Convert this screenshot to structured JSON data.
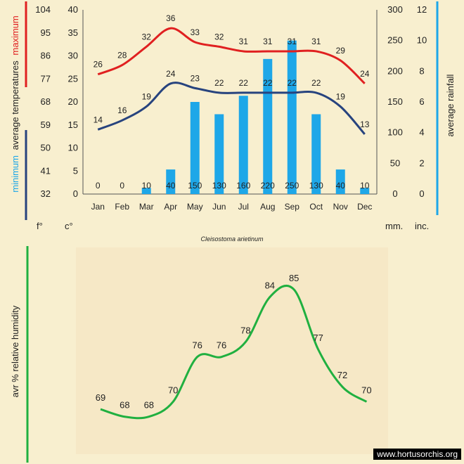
{
  "chart_data": [
    {
      "type": "bar+line",
      "subtitle": "Cleisostoma arietinum",
      "categories": [
        "Jan",
        "Feb",
        "Mar",
        "Apr",
        "May",
        "Jun",
        "Jul",
        "Aug",
        "Sep",
        "Oct",
        "Nov",
        "Dec"
      ],
      "series": [
        {
          "name": "maximum",
          "kind": "line",
          "axis": "celsius",
          "values": [
            26,
            28,
            32,
            36,
            33,
            32,
            31,
            31,
            31,
            31,
            29,
            24
          ],
          "color": "#e02020"
        },
        {
          "name": "minimum",
          "kind": "line",
          "axis": "celsius",
          "values": [
            14,
            16,
            19,
            24,
            23,
            22,
            22,
            22,
            22,
            22,
            19,
            13
          ],
          "color": "#27437e"
        },
        {
          "name": "average rainfall",
          "kind": "bar",
          "axis": "mm",
          "values": [
            0,
            0,
            10,
            40,
            150,
            130,
            160,
            220,
            250,
            130,
            40,
            10
          ],
          "color": "#1ea7e8"
        }
      ],
      "left_axis_label_parts": {
        "minimum": "minimum",
        "average": "average temperatures",
        "maximum": "maximum"
      },
      "right_axis_label": "average rainfall",
      "fahrenheit_ticks": [
        "32",
        "41",
        "50",
        "59",
        "68",
        "77",
        "86",
        "95",
        "104"
      ],
      "celsius_ticks": [
        "0",
        "5",
        "10",
        "15",
        "20",
        "25",
        "30",
        "35",
        "40"
      ],
      "mm_ticks": [
        "0",
        "50",
        "100",
        "150",
        "200",
        "250",
        "300"
      ],
      "inch_ticks": [
        "0",
        "2",
        "4",
        "6",
        "8",
        "10",
        "12"
      ],
      "unit_labels": {
        "f": "f°",
        "c": "c°",
        "mm": "mm.",
        "inc": "inc."
      },
      "ylim_celsius": [
        0,
        40
      ],
      "ylim_mm": [
        0,
        300
      ]
    },
    {
      "type": "line",
      "categories": [
        "Jan",
        "Feb",
        "Mar",
        "Apr",
        "May",
        "Jun",
        "Jul",
        "Aug",
        "Sep",
        "Oct",
        "Nov",
        "Dec"
      ],
      "series": [
        {
          "name": "avr % relative humidity",
          "values": [
            69,
            68,
            68,
            70,
            76,
            76,
            78,
            84,
            85,
            77,
            72,
            70
          ],
          "color": "#20b040"
        }
      ],
      "ylabel": "avr %  relative humidity"
    }
  ],
  "watermark": "www.hortusorchis.org",
  "colors": {
    "max": "#e02020",
    "min": "#27437e",
    "rain": "#1ea7e8",
    "humidity": "#20b040"
  }
}
